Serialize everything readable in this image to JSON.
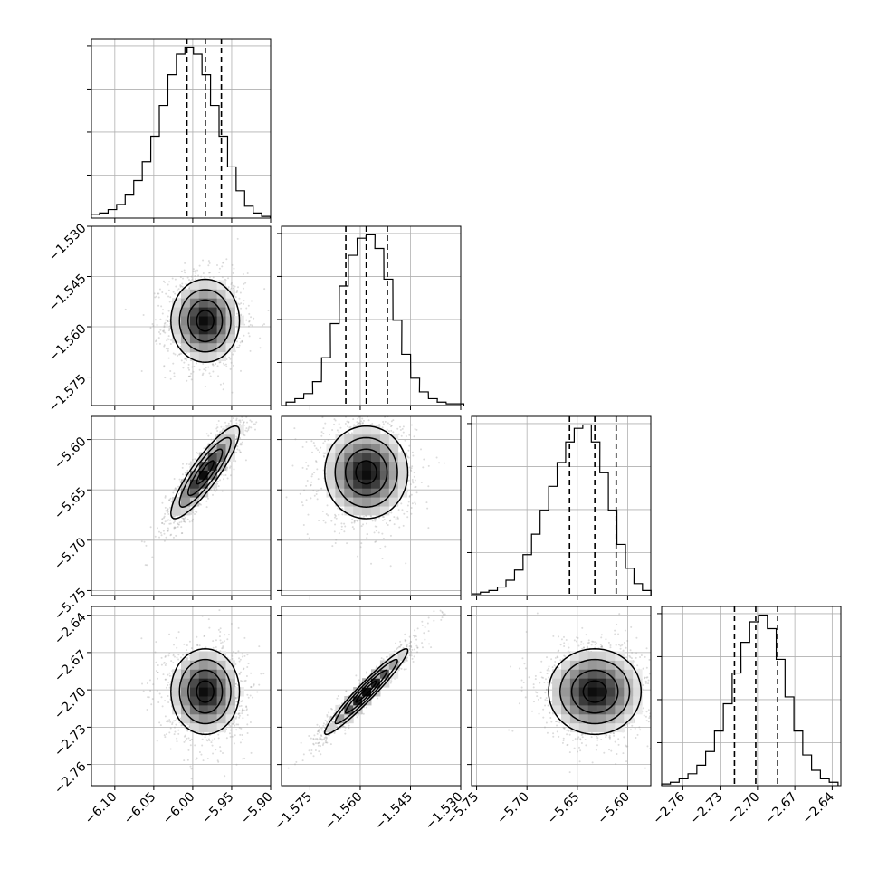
{
  "chart_data": {
    "type": "corner",
    "title": "",
    "parameters": [
      {
        "xlabel": "",
        "range": [
          -6.13,
          -5.9
        ],
        "ticks": [
          "−6.10",
          "−6.05",
          "−6.00",
          "−5.95",
          "−5.90"
        ],
        "tick_values": [
          -6.1,
          -6.05,
          -6.0,
          -5.95,
          -5.9
        ],
        "quantiles": [
          -6.0074,
          -5.9838,
          -5.9632
        ],
        "hist_centers": [
          -6.125,
          -6.1141,
          -6.1031,
          -6.0922,
          -6.0812,
          -6.0702,
          -6.0593,
          -6.0483,
          -6.0374,
          -6.0264,
          -6.0155,
          -6.0045,
          -5.9936,
          -5.9826,
          -5.9717,
          -5.9607,
          -5.9498,
          -5.9388,
          -5.9279,
          -5.9169,
          -5.906
        ],
        "hist_counts": [
          2,
          3,
          5,
          8,
          14,
          22,
          33,
          48,
          66,
          84,
          96,
          100,
          96,
          84,
          66,
          48,
          30,
          16,
          7,
          3,
          1
        ]
      },
      {
        "xlabel": "",
        "range": [
          -1.5835,
          -1.53
        ],
        "ticks": [
          "−1.575",
          "−1.560",
          "−1.545",
          "−1.530"
        ],
        "tick_values": [
          -1.575,
          -1.56,
          -1.545,
          -1.53
        ],
        "quantiles": [
          -1.5643,
          -1.5582,
          -1.5519
        ],
        "hist_centers": [
          -1.5808,
          -1.5782,
          -1.5755,
          -1.5729,
          -1.5702,
          -1.5676,
          -1.5649,
          -1.5622,
          -1.5596,
          -1.5569,
          -1.5543,
          -1.5516,
          -1.5489,
          -1.5463,
          -1.5436,
          -1.541,
          -1.5383,
          -1.5357,
          -1.533,
          -1.5304
        ],
        "hist_counts": [
          2,
          4,
          7,
          14,
          28,
          48,
          70,
          88,
          98,
          100,
          92,
          74,
          50,
          30,
          16,
          8,
          4,
          2,
          1,
          1
        ]
      },
      {
        "xlabel": "",
        "range": [
          -5.755,
          -5.577
        ],
        "ticks": [
          "−5.75",
          "−5.70",
          "−5.65",
          "−5.60"
        ],
        "tick_values": [
          -5.75,
          -5.7,
          -5.65,
          -5.6
        ],
        "quantiles": [
          -5.6577,
          -5.6326,
          -5.6114
        ],
        "hist_centers": [
          -5.7505,
          -5.742,
          -5.7336,
          -5.7251,
          -5.7166,
          -5.7081,
          -5.6997,
          -5.6912,
          -5.6827,
          -5.6742,
          -5.6658,
          -5.6573,
          -5.6488,
          -5.6403,
          -5.6318,
          -5.6234,
          -5.6149,
          -5.6064,
          -5.5979,
          -5.5895,
          -5.581
        ],
        "hist_counts": [
          1,
          2,
          3,
          5,
          9,
          15,
          24,
          36,
          50,
          64,
          78,
          90,
          98,
          100,
          90,
          72,
          50,
          30,
          16,
          7,
          3
        ]
      },
      {
        "xlabel": "",
        "range": [
          -2.777,
          -2.633
        ],
        "ticks": [
          "−2.76",
          "−2.73",
          "−2.70",
          "−2.67",
          "−2.64"
        ],
        "tick_values": [
          -2.76,
          -2.73,
          -2.7,
          -2.67,
          -2.64
        ],
        "quantiles": [
          -2.7185,
          -2.7014,
          -2.6838
        ],
        "hist_centers": [
          -2.7735,
          -2.7665,
          -2.7594,
          -2.7523,
          -2.7452,
          -2.7381,
          -2.731,
          -2.7239,
          -2.7168,
          -2.7098,
          -2.7027,
          -2.6956,
          -2.6885,
          -2.6814,
          -2.6743,
          -2.6672,
          -2.6601,
          -2.653,
          -2.6459,
          -2.6388
        ],
        "hist_counts": [
          1,
          2,
          4,
          7,
          12,
          20,
          32,
          48,
          66,
          84,
          96,
          100,
          92,
          74,
          52,
          32,
          18,
          9,
          4,
          2
        ]
      }
    ],
    "pairs": [
      {
        "row": 1,
        "col": 0,
        "center": [
          -5.984,
          -1.5582
        ],
        "sd": [
          0.022,
          0.0062
        ],
        "rho": 0.0
      },
      {
        "row": 2,
        "col": 0,
        "center": [
          -5.984,
          -5.6326
        ],
        "sd": [
          0.022,
          0.023
        ],
        "rho": 0.88
      },
      {
        "row": 2,
        "col": 1,
        "center": [
          -1.5582,
          -5.6326
        ],
        "sd": [
          0.0062,
          0.023
        ],
        "rho": 0.0
      },
      {
        "row": 3,
        "col": 0,
        "center": [
          -5.984,
          -2.7014
        ],
        "sd": [
          0.022,
          0.0172
        ],
        "rho": 0.0
      },
      {
        "row": 3,
        "col": 1,
        "center": [
          -1.5582,
          -2.7014
        ],
        "sd": [
          0.0062,
          0.0172
        ],
        "rho": 0.96
      },
      {
        "row": 3,
        "col": 2,
        "center": [
          -5.6326,
          -2.7014
        ],
        "sd": [
          0.023,
          0.0172
        ],
        "rho": 0.0
      }
    ],
    "contour_levels_sigma": [
      0.5,
      1.0,
      1.5,
      2.0
    ],
    "grid": true,
    "legend": "none"
  }
}
